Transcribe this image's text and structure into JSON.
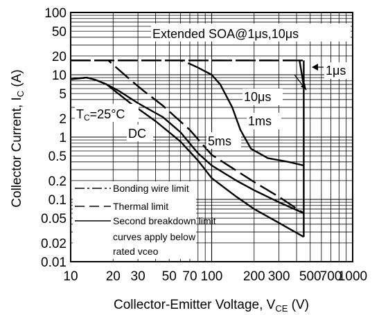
{
  "chart_data": {
    "type": "line",
    "scale": {
      "x": "log",
      "y": "log"
    },
    "xlim": [
      10,
      1000
    ],
    "ylim": [
      0.01,
      100
    ],
    "grid": true,
    "x_ticks": [
      {
        "v": 10,
        "label": "10"
      },
      {
        "v": 20,
        "label": "20"
      },
      {
        "v": 30,
        "label": "30"
      },
      {
        "v": 50,
        "label": "50"
      },
      {
        "v": 70,
        "label": "70"
      },
      {
        "v": 100,
        "label": "100"
      },
      {
        "v": 200,
        "label": "200"
      },
      {
        "v": 300,
        "label": "300"
      },
      {
        "v": 500,
        "label": "500"
      },
      {
        "v": 700,
        "label": "700"
      },
      {
        "v": 1000,
        "label": "1000"
      }
    ],
    "y_ticks": [
      {
        "v": 100,
        "label": "100"
      },
      {
        "v": 50,
        "label": "50"
      },
      {
        "v": 20,
        "label": "20"
      },
      {
        "v": 10,
        "label": "10"
      },
      {
        "v": 5,
        "label": "5"
      },
      {
        "v": 2,
        "label": "2"
      },
      {
        "v": 1,
        "label": "1"
      },
      {
        "v": 0.5,
        "label": "0.5"
      },
      {
        "v": 0.2,
        "label": "0.2"
      },
      {
        "v": 0.1,
        "label": "0.1"
      },
      {
        "v": 0.05,
        "label": "0.05"
      },
      {
        "v": 0.02,
        "label": "0.02"
      },
      {
        "v": 0.01,
        "label": "0.01"
      }
    ],
    "xlabel": {
      "main": "Collector-Emitter Voltage, V",
      "sub": "CE",
      "unit": " (V)"
    },
    "ylabel": {
      "main": "Collector Current, I",
      "sub": "C",
      "unit": " (A)"
    },
    "annotations": {
      "header": "Extended SOA@1μs,10μs",
      "tc_main": "T",
      "tc_sub": "C",
      "tc_rest": "=25°C",
      "dc": "DC",
      "ms5": "5ms",
      "ms1": "1ms",
      "us10": "10μs",
      "us1": "1μs"
    },
    "legend": [
      {
        "style": "dashdot",
        "label": "Bonding wire limit"
      },
      {
        "style": "dashed",
        "label": "Thermal limit"
      },
      {
        "style": "solid",
        "label": "Second breakdown limit"
      }
    ],
    "legend_note": [
      "curves apply below",
      "rated vceo"
    ],
    "series": [
      {
        "style": "dashdot",
        "points": [
          [
            10,
            17
          ],
          [
            450,
            17
          ]
        ]
      },
      {
        "style": "dashed",
        "points": [
          [
            10,
            17
          ],
          [
            18.5,
            17
          ],
          [
            22,
            12
          ],
          [
            27,
            8
          ],
          [
            33,
            5.5
          ],
          [
            45,
            3.2
          ],
          [
            70,
            1.3
          ],
          [
            100,
            0.52
          ],
          [
            200,
            0.19
          ],
          [
            300,
            0.11
          ],
          [
            450,
            0.06
          ]
        ]
      },
      {
        "style": "dashed",
        "points": [
          [
            10,
            17
          ],
          [
            60,
            17
          ],
          [
            70,
            15
          ],
          [
            80,
            13
          ]
        ]
      },
      {
        "style": "dashed",
        "points": [
          [
            10,
            17
          ],
          [
            450,
            17
          ]
        ]
      },
      {
        "style": "solid",
        "points": [
          [
            10,
            8.5
          ],
          [
            13,
            9
          ],
          [
            15,
            8.3
          ],
          [
            18,
            7
          ],
          [
            21,
            5.3
          ],
          [
            27,
            3.4
          ],
          [
            40,
            1.8
          ],
          [
            60,
            0.85
          ],
          [
            80,
            0.42
          ],
          [
            100,
            0.22
          ],
          [
            150,
            0.11
          ],
          [
            200,
            0.07
          ],
          [
            300,
            0.042
          ],
          [
            450,
            0.025
          ]
        ]
      },
      {
        "style": "solid",
        "points": [
          [
            10,
            8.5
          ],
          [
            13,
            9
          ],
          [
            15,
            8.3
          ],
          [
            18,
            7
          ],
          [
            22,
            5.5
          ],
          [
            30,
            3.5
          ],
          [
            45,
            2.1
          ],
          [
            60,
            1.2
          ],
          [
            80,
            0.55
          ],
          [
            100,
            0.35
          ],
          [
            150,
            0.2
          ],
          [
            200,
            0.14
          ],
          [
            300,
            0.09
          ],
          [
            450,
            0.06
          ]
        ]
      },
      {
        "style": "solid",
        "points": [
          [
            80,
            13
          ],
          [
            100,
            10
          ],
          [
            115,
            7
          ],
          [
            140,
            3
          ],
          [
            160,
            1.3
          ],
          [
            190,
            0.65
          ],
          [
            250,
            0.46
          ],
          [
            350,
            0.4
          ],
          [
            450,
            0.35
          ]
        ]
      },
      {
        "style": "solid",
        "points": [
          [
            420,
            17
          ],
          [
            440,
            9
          ],
          [
            450,
            6.5
          ]
        ]
      },
      {
        "style": "solid",
        "points": [
          [
            450,
            17
          ],
          [
            450,
            0.025
          ]
        ]
      }
    ]
  }
}
